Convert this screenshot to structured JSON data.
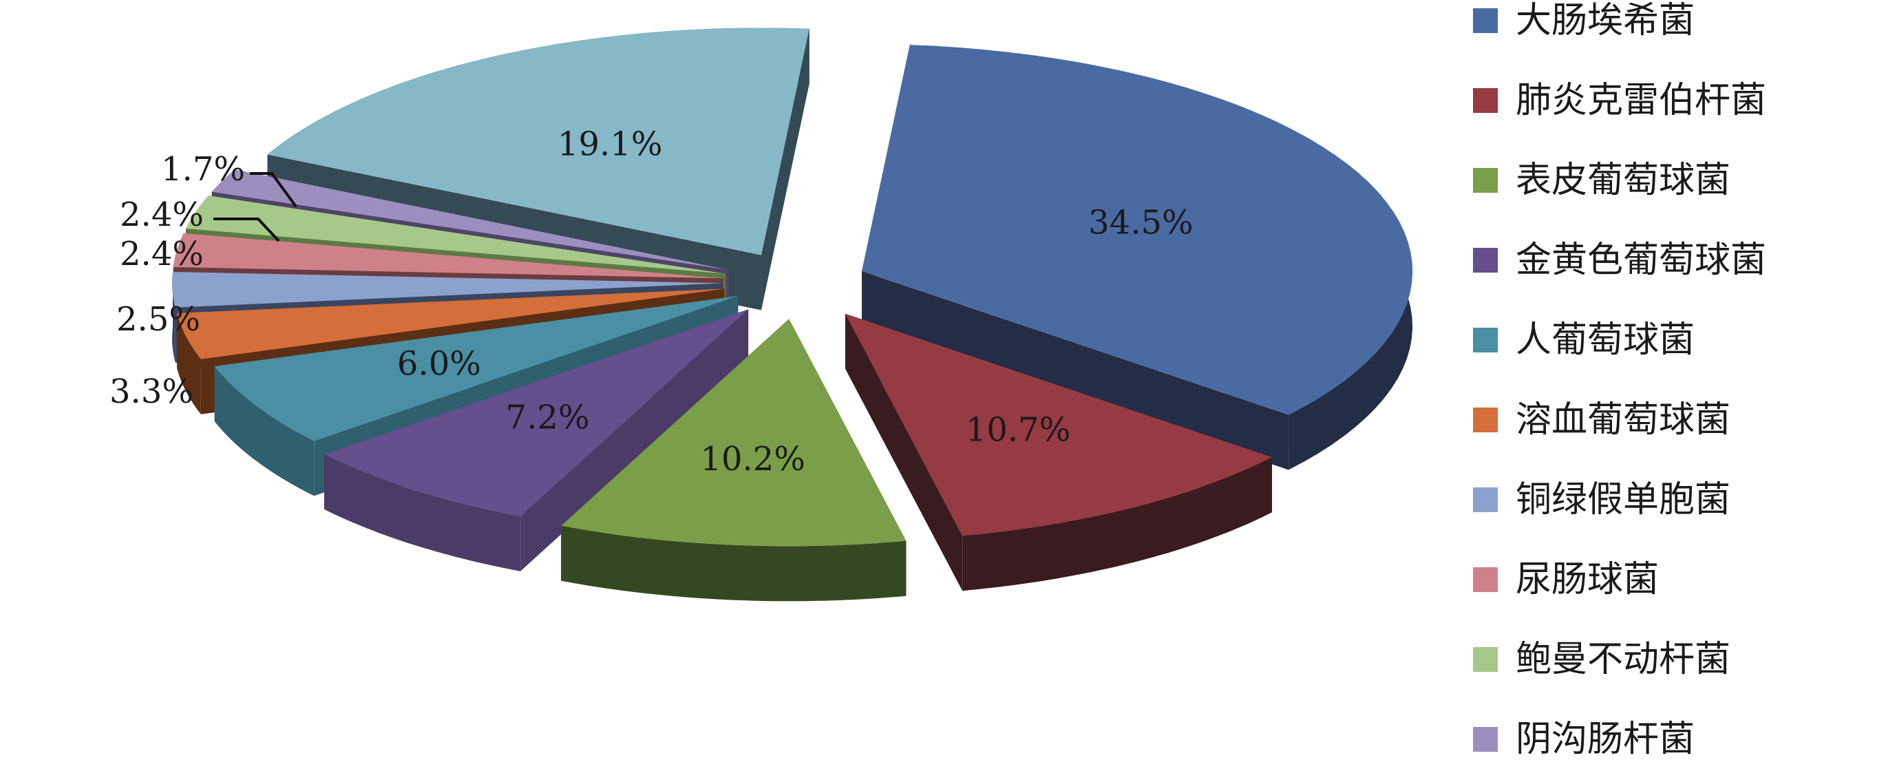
{
  "chart_data": {
    "type": "pie",
    "style": "3d-exploded",
    "legend_position": "right",
    "categories": [
      "大肠埃希菌",
      "肺炎克雷伯杆菌",
      "表皮葡萄球菌",
      "金黄色葡萄球菌",
      "人葡萄球菌",
      "溶血葡萄球菌",
      "铜绿假单胞菌",
      "尿肠球菌",
      "鲍曼不动杆菌",
      "阴沟肠杆菌",
      ""
    ],
    "values": [
      34.5,
      10.7,
      10.2,
      7.2,
      6.0,
      3.3,
      2.5,
      2.4,
      2.4,
      1.7,
      19.1
    ],
    "labels": [
      "34.5%",
      "10.7%",
      "10.2%",
      "7.2%",
      "6.0%",
      "3.3%",
      "2.5%",
      "2.4%",
      "2.4%",
      "1.7%",
      "19.1%"
    ],
    "colors": [
      "#4A6BA2",
      "#963A43",
      "#7A9F48",
      "#654F8C",
      "#4A8FA4",
      "#D46E3A",
      "#8CA2CE",
      "#CF8189",
      "#A6C98A",
      "#9C8EBF",
      "#86B8C8"
    ],
    "side_colors": [
      "#232D45",
      "#3A1B1F",
      "#344922",
      "#4A3C66",
      "#2F6070",
      "#5C2E14",
      "#3A4560",
      "#6A3C40",
      "#5B7A44",
      "#4E4566",
      "#344A55"
    ]
  }
}
